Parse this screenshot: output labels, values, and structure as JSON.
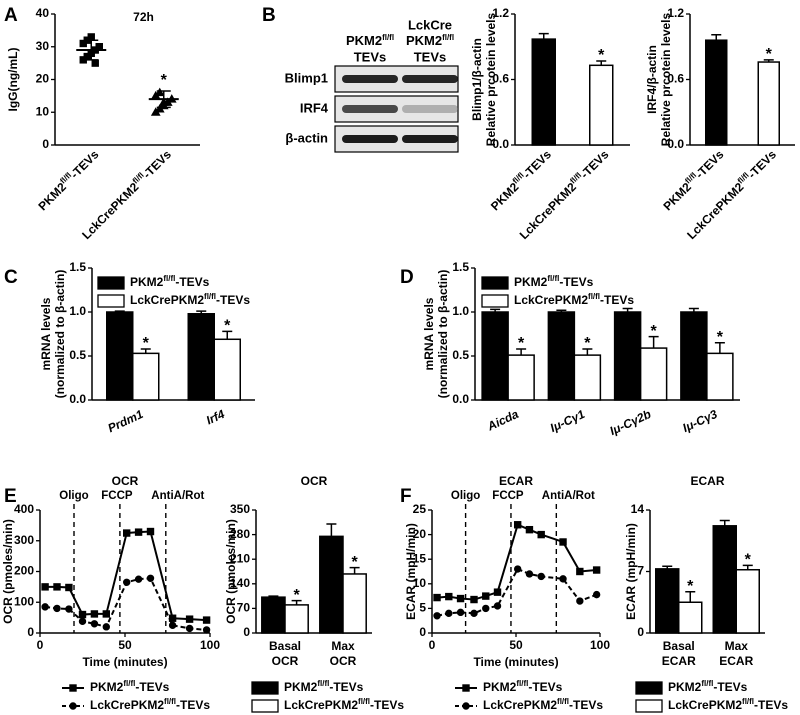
{
  "chart_data": [
    {
      "type": "dotplot",
      "panel": "A",
      "title": "72h",
      "ylabel": "IgG(ng/mL)",
      "categories": [
        "PKM2fl/fl-TEVs",
        "LckCrePKM2fl/fl-TEVs"
      ],
      "points": [
        [
          26,
          27,
          28,
          29,
          30,
          31,
          32,
          33,
          25,
          30
        ],
        [
          10,
          11,
          12,
          13,
          14,
          15,
          16,
          13
        ]
      ],
      "means": [
        29,
        14
      ],
      "sd": [
        3,
        2.5
      ],
      "significance": [
        null,
        "*"
      ],
      "color": "#000000",
      "ylim": [
        0,
        40
      ],
      "yticks": [
        0,
        10,
        20,
        30,
        40
      ]
    },
    {
      "type": "bar",
      "ylabel": [
        "Blimp1/β-actin",
        "Relative prcotein levels"
      ],
      "categories": [
        "PKM2fl/fl-TEVs",
        "LckCrePKM2fl/fl-TEVs"
      ],
      "values": [
        0.97,
        0.73
      ],
      "errors": [
        0.05,
        0.04
      ],
      "colors": [
        "#000000",
        "#ffffff"
      ],
      "significance": [
        null,
        "*"
      ],
      "ylim": [
        0,
        1.2
      ],
      "yticks": [
        {
          "value": 0,
          "label": "0.0"
        },
        0.6,
        1.2
      ]
    },
    {
      "type": "bar",
      "ylabel": [
        "IRF4/β-actin",
        "Relative prcotein levels"
      ],
      "categories": [
        "PKM2fl/fl-TEVs",
        "LckCrePKM2fl/fl-TEVs"
      ],
      "values": [
        0.96,
        0.76
      ],
      "errors": [
        0.05,
        0.02
      ],
      "colors": [
        "#000000",
        "#ffffff"
      ],
      "significance": [
        null,
        "*"
      ],
      "ylim": [
        0,
        1.2
      ],
      "yticks": [
        {
          "value": 0,
          "label": "0.0"
        },
        0.6,
        1.2
      ]
    },
    {
      "type": "bar",
      "panel": "C",
      "ylabel": [
        "mRNA levels",
        "(normalized to β-actin)"
      ],
      "categories": [
        "Prdm1",
        "Irf4"
      ],
      "italic_categories": true,
      "series": [
        {
          "name": "PKM2fl/fl-TEVs",
          "color": "#000000",
          "values": [
            1.0,
            0.98
          ],
          "errors": [
            0.01,
            0.03
          ]
        },
        {
          "name": "LckCrePKM2fl/fl-TEVs",
          "color": "#ffffff",
          "values": [
            0.53,
            0.69
          ],
          "errors": [
            0.05,
            0.09
          ],
          "significance": [
            "*",
            "*"
          ]
        }
      ],
      "ylim": [
        0,
        1.5
      ],
      "yticks": [
        {
          "value": 0,
          "label": "0.0"
        },
        0.5,
        {
          "value": 1,
          "label": "1.0"
        },
        1.5
      ],
      "legend": "top-left"
    },
    {
      "type": "bar",
      "panel": "D",
      "ylabel": [
        "mRNA levels",
        "(normalized to β-actin)"
      ],
      "categories": [
        "Aicda",
        "Iμ-Cγ1",
        "Iμ-Cγ2b",
        "Iμ-Cγ3"
      ],
      "italic_categories": true,
      "series": [
        {
          "name": "PKM2fl/fl-TEVs",
          "color": "#000000",
          "values": [
            1.0,
            1.0,
            1.0,
            1.0
          ],
          "errors": [
            0.03,
            0.02,
            0.04,
            0.04
          ]
        },
        {
          "name": "LckCrePKM2fl/fl-TEVs",
          "color": "#ffffff",
          "values": [
            0.51,
            0.51,
            0.59,
            0.53
          ],
          "errors": [
            0.07,
            0.07,
            0.13,
            0.12
          ],
          "significance": [
            "*",
            "*",
            "*",
            "*"
          ]
        }
      ],
      "ylim": [
        0,
        1.5
      ],
      "yticks": [
        {
          "value": 0,
          "label": "0.0"
        },
        0.5,
        {
          "value": 1,
          "label": "1.0"
        },
        1.5
      ],
      "legend": "top-left"
    },
    {
      "type": "line",
      "panel": "E",
      "title": "OCR",
      "xlabel": "Time (minutes)",
      "ylabel": "OCR (pmoles/min)",
      "x": [
        3,
        10,
        17,
        25,
        32,
        39,
        51,
        58,
        65,
        78,
        88,
        98
      ],
      "events": [
        {
          "label": "Oligo",
          "x": 20
        },
        {
          "label": "FCCP",
          "x": 47
        },
        {
          "label": "AntiA/Rot",
          "x": 74
        }
      ],
      "series": [
        {
          "name": "PKM2fl/fl-TEVs",
          "color": "#000000",
          "marker": "square",
          "dashed": false,
          "values": [
            150,
            150,
            148,
            60,
            62,
            62,
            325,
            328,
            330,
            48,
            45,
            42
          ]
        },
        {
          "name": "LckCrePKM2fl/fl-TEVs",
          "color": "#000000",
          "marker": "circle",
          "dashed": true,
          "values": [
            85,
            80,
            78,
            38,
            30,
            20,
            165,
            175,
            178,
            25,
            15,
            10
          ]
        }
      ],
      "xlim": [
        0,
        100
      ],
      "xticks": [
        0,
        50,
        100
      ],
      "ylim": [
        0,
        400
      ],
      "yticks": [
        0,
        100,
        200,
        300,
        400
      ],
      "legend": "bottom"
    },
    {
      "type": "bar",
      "title": "OCR",
      "ylabel": "OCR (pmoles/min)",
      "categories": [
        [
          "Basal",
          "OCR"
        ],
        [
          "Max",
          "OCR"
        ]
      ],
      "series": [
        {
          "name": "PKM2fl/fl-TEVs",
          "color": "#000000",
          "values": [
            102,
            275
          ],
          "errors": [
            3,
            35
          ]
        },
        {
          "name": "LckCrePKM2fl/fl-TEVs",
          "color": "#ffffff",
          "values": [
            80,
            168
          ],
          "errors": [
            12,
            18
          ],
          "significance": [
            "*",
            "*"
          ]
        }
      ],
      "ylim": [
        0,
        350
      ],
      "yticks": [
        0,
        70,
        140,
        210,
        280,
        350
      ],
      "legend": "bottom"
    },
    {
      "type": "line",
      "panel": "F",
      "title": "ECAR",
      "xlabel": "Time (minutes)",
      "ylabel": "ECAR (mpH/min)",
      "x": [
        3,
        10,
        17,
        25,
        32,
        39,
        51,
        58,
        65,
        78,
        88,
        98
      ],
      "events": [
        {
          "label": "Oligo",
          "x": 20
        },
        {
          "label": "FCCP",
          "x": 47
        },
        {
          "label": "AntiA/Rot",
          "x": 74
        }
      ],
      "series": [
        {
          "name": "PKM2fl/fl-TEVs",
          "color": "#000000",
          "marker": "square",
          "dashed": false,
          "values": [
            7.2,
            7.4,
            7.0,
            6.8,
            7.5,
            8.3,
            22,
            21,
            20,
            18.5,
            12.5,
            12.8
          ]
        },
        {
          "name": "LckCrePKM2fl/fl-TEVs",
          "color": "#000000",
          "marker": "circle",
          "dashed": true,
          "values": [
            3.5,
            4,
            4.2,
            4,
            5,
            5.5,
            13,
            12,
            11.5,
            11,
            6.5,
            7.8
          ]
        }
      ],
      "xlim": [
        0,
        100
      ],
      "xticks": [
        0,
        50,
        100
      ],
      "ylim": [
        0,
        25
      ],
      "yticks": [
        0,
        5,
        10,
        15,
        20,
        25
      ],
      "legend": "bottom"
    },
    {
      "type": "bar",
      "title": "ECAR",
      "ylabel": "ECAR (mpH/min)",
      "categories": [
        [
          "Basal",
          "ECAR"
        ],
        [
          "Max",
          "ECAR"
        ]
      ],
      "series": [
        {
          "name": "PKM2fl/fl-TEVs",
          "color": "#000000",
          "values": [
            7.3,
            12.2
          ],
          "errors": [
            0.3,
            0.6
          ]
        },
        {
          "name": "LckCrePKM2fl/fl-TEVs",
          "color": "#ffffff",
          "values": [
            3.5,
            7.2
          ],
          "errors": [
            1.2,
            0.5
          ],
          "significance": [
            "*",
            "*"
          ]
        }
      ],
      "ylim": [
        0,
        14
      ],
      "yticks": [
        0,
        7,
        14
      ],
      "legend": "bottom"
    }
  ],
  "blot": {
    "panel": "B",
    "lanes": [
      [
        "PKM2fl/fl",
        "TEVs"
      ],
      [
        "LckCre",
        "PKM2fl/fl",
        "TEVs"
      ]
    ],
    "rows": [
      "Blimp1",
      "IRF4",
      "β-actin"
    ]
  }
}
